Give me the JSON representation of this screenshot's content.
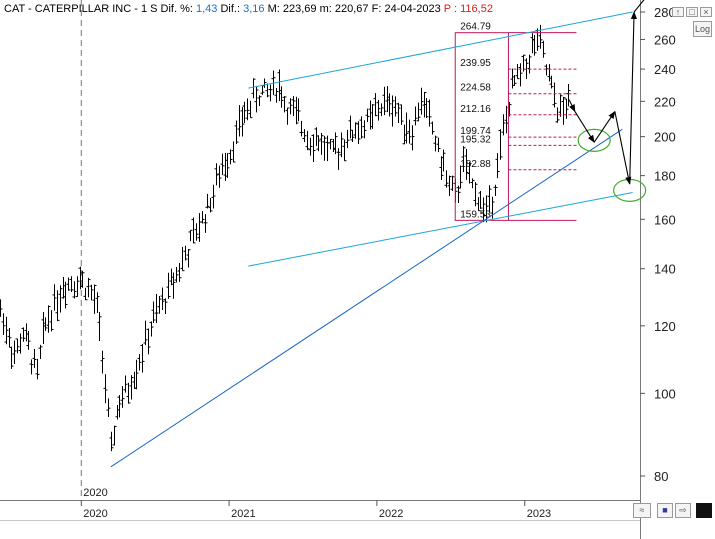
{
  "header": {
    "symbol": "CAT",
    "name": "CATERPILLAR INC",
    "timeframe": "1 S",
    "dif_pct_label": "Dif. %:",
    "dif_pct": "1,43",
    "dif_label": "Dif.:",
    "dif": "3,16",
    "max_label": "M:",
    "max": "223,69",
    "min_label": "m:",
    "min": "220,67",
    "date_label": "F:",
    "date": "24-04-2023",
    "p_label": "P :",
    "p_value": "116,52"
  },
  "controls": {
    "log_label": "Log",
    "win_icons": [
      "window-up-icon",
      "window-restore-icon",
      "window-close-icon"
    ],
    "bottom_icons": [
      "compare-icon",
      "save-icon",
      "zoom-icon",
      "color-icon"
    ]
  },
  "colors": {
    "bars": "#000000",
    "trendline": "#1aa7d9",
    "support_line": "#1565c0",
    "fib": "#c2185b",
    "ellipse": "#3fae2a",
    "arrow": "#000000"
  },
  "chart_data": {
    "type": "ohlc",
    "scale": "log",
    "ylim": [
      74,
      283
    ],
    "yticks": [
      80,
      100,
      120,
      140,
      160,
      180,
      200,
      220,
      240,
      260,
      280
    ],
    "xlim": [
      2019.45,
      2023.78
    ],
    "xticks": [
      {
        "label": "2020",
        "x": 2020.0
      },
      {
        "label": "2021",
        "x": 2021.0
      },
      {
        "label": "2022",
        "x": 2022.0
      },
      {
        "label": "2023",
        "x": 2023.0
      }
    ],
    "marker": {
      "label": "2020",
      "x": 2020.0
    },
    "price_path": [
      [
        2019.45,
        125
      ],
      [
        2019.5,
        118
      ],
      [
        2019.55,
        110
      ],
      [
        2019.6,
        118
      ],
      [
        2019.65,
        112
      ],
      [
        2019.7,
        105
      ],
      [
        2019.75,
        120
      ],
      [
        2019.82,
        128
      ],
      [
        2019.88,
        134
      ],
      [
        2019.95,
        136
      ],
      [
        2020.0,
        136
      ],
      [
        2020.05,
        132
      ],
      [
        2020.1,
        127
      ],
      [
        2020.14,
        112
      ],
      [
        2020.17,
        98
      ],
      [
        2020.2,
        85
      ],
      [
        2020.24,
        96
      ],
      [
        2020.3,
        100
      ],
      [
        2020.36,
        106
      ],
      [
        2020.42,
        113
      ],
      [
        2020.48,
        121
      ],
      [
        2020.55,
        128
      ],
      [
        2020.62,
        136
      ],
      [
        2020.7,
        145
      ],
      [
        2020.78,
        155
      ],
      [
        2020.86,
        166
      ],
      [
        2020.94,
        182
      ],
      [
        2021.02,
        195
      ],
      [
        2021.1,
        212
      ],
      [
        2021.18,
        224
      ],
      [
        2021.26,
        226
      ],
      [
        2021.33,
        231
      ],
      [
        2021.38,
        218
      ],
      [
        2021.46,
        210
      ],
      [
        2021.54,
        200
      ],
      [
        2021.62,
        197
      ],
      [
        2021.7,
        190
      ],
      [
        2021.78,
        199
      ],
      [
        2021.86,
        204
      ],
      [
        2021.94,
        208
      ],
      [
        2022.02,
        217
      ],
      [
        2022.1,
        220
      ],
      [
        2022.18,
        208
      ],
      [
        2022.24,
        203
      ],
      [
        2022.3,
        222
      ],
      [
        2022.36,
        208
      ],
      [
        2022.42,
        190
      ],
      [
        2022.48,
        177
      ],
      [
        2022.53,
        168
      ],
      [
        2022.58,
        187
      ],
      [
        2022.64,
        175
      ],
      [
        2022.7,
        168
      ],
      [
        2022.74,
        162
      ],
      [
        2022.8,
        178
      ],
      [
        2022.86,
        205
      ],
      [
        2022.92,
        230
      ],
      [
        2022.98,
        238
      ],
      [
        2023.04,
        252
      ],
      [
        2023.09,
        260
      ],
      [
        2023.13,
        245
      ],
      [
        2023.17,
        230
      ],
      [
        2023.21,
        218
      ],
      [
        2023.25,
        212
      ],
      [
        2023.3,
        221
      ]
    ],
    "trendlines": [
      {
        "color": "trendline",
        "x1": 2021.13,
        "y1": 228,
        "x2": 2023.73,
        "y2": 280
      },
      {
        "color": "trendline",
        "x1": 2021.13,
        "y1": 141,
        "x2": 2023.73,
        "y2": 172
      },
      {
        "color": "support_line",
        "x1": 2020.2,
        "y1": 82,
        "x2": 2023.66,
        "y2": 204
      }
    ],
    "fib_box": {
      "x1": 2022.53,
      "x2": 2022.89,
      "x2_ext": 2023.35,
      "top": 264.79,
      "bottom": 159.53
    },
    "fib_levels": [
      {
        "label": "264.79",
        "value": 264.79,
        "style": "solid"
      },
      {
        "label": "239.95",
        "value": 239.95,
        "style": "dashed"
      },
      {
        "label": "224.58",
        "value": 224.58,
        "style": "dashed"
      },
      {
        "label": "212.16",
        "value": 212.16,
        "style": "dashed"
      },
      {
        "label": "199.74",
        "value": 199.74,
        "style": "dashed"
      },
      {
        "label": "195.32",
        "value": 195.32,
        "style": "dashed"
      },
      {
        "label": "182.88",
        "value": 182.88,
        "style": "dashed"
      },
      {
        "label": "159.53",
        "value": 159.53,
        "style": "solid"
      }
    ],
    "projection": [
      {
        "x": 2023.3,
        "y": 221
      },
      {
        "x": 2023.34,
        "y": 214
      },
      {
        "x": 2023.47,
        "y": 197
      },
      {
        "x": 2023.61,
        "y": 214
      },
      {
        "x": 2023.71,
        "y": 176
      },
      {
        "x": 2023.74,
        "y": 280
      },
      {
        "x": 2023.88,
        "y": 300
      }
    ],
    "ellipses": [
      {
        "x": 2023.47,
        "y": 198
      },
      {
        "x": 2023.71,
        "y": 173
      }
    ]
  }
}
